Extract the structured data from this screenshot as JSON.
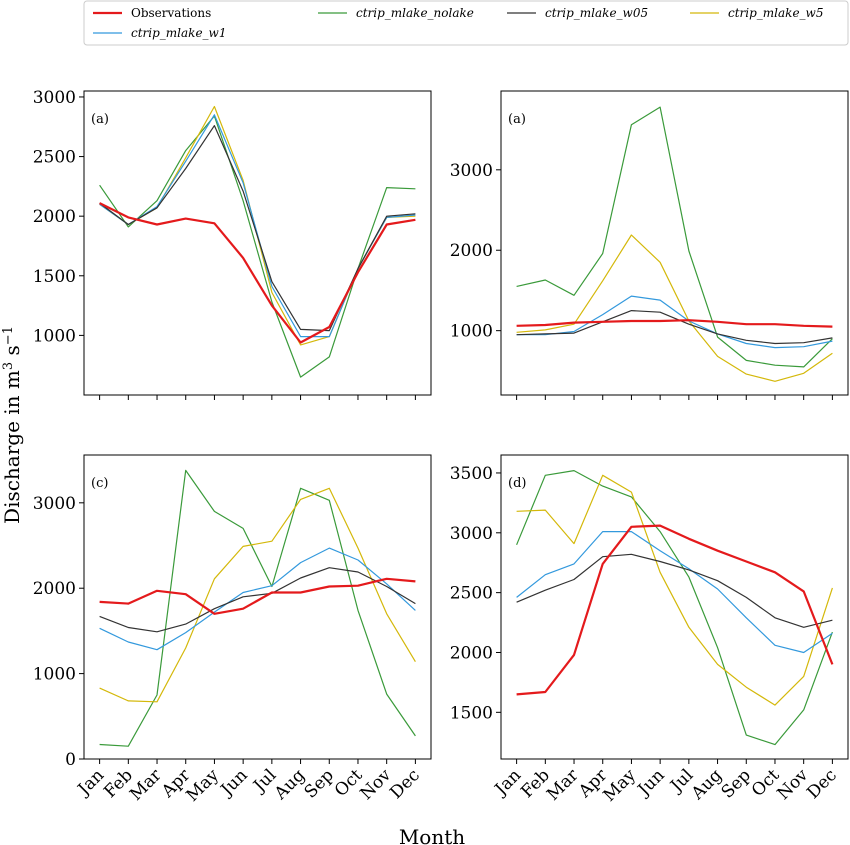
{
  "figure": {
    "xlabel": "Month",
    "ylabel": "Discharge in m",
    "ylabel_sup1": "3",
    "ylabel_mid": " s",
    "ylabel_sup2": "−1"
  },
  "legend": {
    "placement": "top",
    "entries": [
      {
        "name": "Observations",
        "color": "#e41a1c",
        "italic": false,
        "bold": true
      },
      {
        "name": "ctrip_mlake_nolake",
        "color": "#3a9a3a",
        "italic": true,
        "bold": false
      },
      {
        "name": "ctrip_mlake_w05",
        "color": "#333333",
        "italic": true,
        "bold": false
      },
      {
        "name": "ctrip_mlake_w5",
        "color": "#d4b80a",
        "italic": true,
        "bold": false
      },
      {
        "name": "ctrip_mlake_w1",
        "color": "#3399dd",
        "italic": true,
        "bold": false
      }
    ]
  },
  "chart_data": [
    {
      "type": "line",
      "panel_label": "(a)",
      "categories": [
        "Jan",
        "Feb",
        "Mar",
        "Apr",
        "May",
        "Jun",
        "Jul",
        "Aug",
        "Sep",
        "Oct",
        "Nov",
        "Dec"
      ],
      "ylim": [
        500,
        3050
      ],
      "yticks": [
        1000,
        1500,
        2000,
        2500,
        3000
      ],
      "show_xticklabels": false,
      "series": [
        {
          "name": "ctrip_mlake_nolake",
          "values": [
            2260,
            1910,
            2130,
            2550,
            2840,
            2130,
            1280,
            650,
            820,
            1560,
            2240,
            2230
          ]
        },
        {
          "name": "ctrip_mlake_w5",
          "values": [
            2100,
            1930,
            2070,
            2490,
            2920,
            2300,
            1360,
            920,
            990,
            1560,
            1990,
            2000
          ]
        },
        {
          "name": "ctrip_mlake_w1",
          "values": [
            2100,
            1930,
            2080,
            2460,
            2850,
            2280,
            1410,
            990,
            990,
            1560,
            1990,
            2010
          ]
        },
        {
          "name": "ctrip_mlake_w05",
          "values": [
            2110,
            1930,
            2070,
            2400,
            2760,
            2210,
            1450,
            1050,
            1040,
            1560,
            2000,
            2020
          ]
        },
        {
          "name": "Observations",
          "values": [
            2110,
            1990,
            1930,
            1980,
            1940,
            1650,
            1250,
            940,
            1070,
            1530,
            1930,
            1970
          ]
        }
      ]
    },
    {
      "type": "line",
      "panel_label": "(a)",
      "categories": [
        "Jan",
        "Feb",
        "Mar",
        "Apr",
        "May",
        "Jun",
        "Jul",
        "Aug",
        "Sep",
        "Oct",
        "Nov",
        "Dec"
      ],
      "ylim": [
        200,
        3980
      ],
      "yticks": [
        1000,
        2000,
        3000
      ],
      "show_xticklabels": false,
      "series": [
        {
          "name": "ctrip_mlake_nolake",
          "values": [
            1550,
            1630,
            1440,
            1960,
            3560,
            3780,
            1990,
            920,
            630,
            570,
            550,
            900
          ]
        },
        {
          "name": "ctrip_mlake_w5",
          "values": [
            980,
            1010,
            1080,
            1620,
            2190,
            1850,
            1120,
            680,
            460,
            370,
            470,
            720
          ]
        },
        {
          "name": "ctrip_mlake_w1",
          "values": [
            950,
            950,
            990,
            1200,
            1430,
            1380,
            1120,
            960,
            840,
            790,
            800,
            870
          ]
        },
        {
          "name": "ctrip_mlake_w05",
          "values": [
            950,
            960,
            970,
            1110,
            1250,
            1230,
            1080,
            960,
            880,
            840,
            850,
            910
          ]
        },
        {
          "name": "Observations",
          "values": [
            1060,
            1070,
            1100,
            1110,
            1120,
            1120,
            1130,
            1110,
            1080,
            1080,
            1060,
            1050
          ]
        }
      ]
    },
    {
      "type": "line",
      "panel_label": "(c)",
      "categories": [
        "Jan",
        "Feb",
        "Mar",
        "Apr",
        "May",
        "Jun",
        "Jul",
        "Aug",
        "Sep",
        "Oct",
        "Nov",
        "Dec"
      ],
      "ylim": [
        0,
        3560
      ],
      "yticks": [
        0,
        1000,
        2000,
        3000
      ],
      "show_xticklabels": true,
      "series": [
        {
          "name": "ctrip_mlake_nolake",
          "values": [
            170,
            150,
            750,
            3380,
            2900,
            2700,
            2020,
            3170,
            3030,
            1740,
            760,
            270
          ]
        },
        {
          "name": "ctrip_mlake_w5",
          "values": [
            830,
            680,
            670,
            1300,
            2110,
            2490,
            2550,
            3040,
            3170,
            2470,
            1700,
            1140
          ]
        },
        {
          "name": "ctrip_mlake_w1",
          "values": [
            1530,
            1370,
            1280,
            1480,
            1720,
            1950,
            2030,
            2300,
            2470,
            2330,
            2050,
            1740
          ]
        },
        {
          "name": "ctrip_mlake_w05",
          "values": [
            1670,
            1540,
            1490,
            1580,
            1760,
            1900,
            1940,
            2120,
            2240,
            2190,
            2020,
            1820
          ]
        },
        {
          "name": "Observations",
          "values": [
            1840,
            1820,
            1970,
            1930,
            1700,
            1760,
            1950,
            1950,
            2020,
            2030,
            2110,
            2080
          ]
        }
      ]
    },
    {
      "type": "line",
      "panel_label": "(d)",
      "categories": [
        "Jan",
        "Feb",
        "Mar",
        "Apr",
        "May",
        "Jun",
        "Jul",
        "Aug",
        "Sep",
        "Oct",
        "Nov",
        "Dec"
      ],
      "ylim": [
        1110,
        3650
      ],
      "yticks": [
        1500,
        2000,
        2500,
        3000,
        3500
      ],
      "show_xticklabels": true,
      "series": [
        {
          "name": "ctrip_mlake_nolake",
          "values": [
            2900,
            3480,
            3520,
            3390,
            3300,
            3010,
            2630,
            2040,
            1310,
            1230,
            1520,
            2170
          ]
        },
        {
          "name": "ctrip_mlake_w5",
          "values": [
            3180,
            3190,
            2910,
            3480,
            3340,
            2670,
            2210,
            1900,
            1710,
            1560,
            1800,
            2540
          ]
        },
        {
          "name": "ctrip_mlake_w1",
          "values": [
            2460,
            2650,
            2740,
            3010,
            3010,
            2850,
            2700,
            2530,
            2290,
            2060,
            2000,
            2160
          ]
        },
        {
          "name": "ctrip_mlake_w05",
          "values": [
            2420,
            2520,
            2610,
            2800,
            2820,
            2760,
            2690,
            2600,
            2460,
            2290,
            2210,
            2270
          ]
        },
        {
          "name": "Observations",
          "values": [
            1650,
            1670,
            1980,
            2740,
            3050,
            3060,
            2950,
            2850,
            2760,
            2670,
            2510,
            1900
          ]
        }
      ]
    }
  ]
}
